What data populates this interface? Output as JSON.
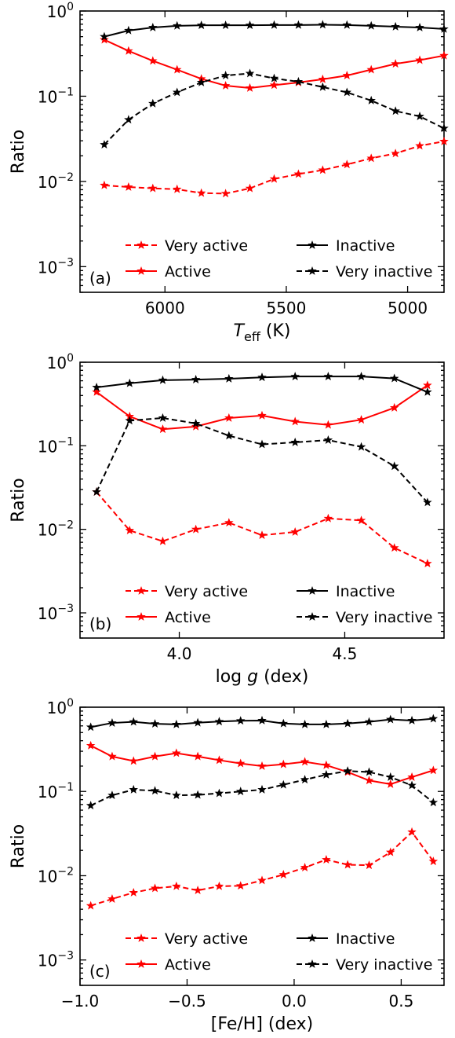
{
  "chart_data": [
    {
      "type": "line",
      "panel_label": "(a)",
      "xlabel_main": "T",
      "xlabel_sub": "eff",
      "xlabel_unit": " (K)",
      "ylabel": "Ratio",
      "xscale": "linear",
      "xreverse": true,
      "xlim": [
        6350,
        4850
      ],
      "yscale": "log",
      "ylim": [
        0.0005,
        1.0
      ],
      "xticks": [
        6000,
        5500,
        5000
      ],
      "xtick_labels": [
        "6000",
        "5500",
        "5000"
      ],
      "yticks": [
        0.001,
        0.01,
        0.1,
        1
      ],
      "ytick_labels": [
        "10",
        "10",
        "10",
        "10"
      ],
      "ytick_exps": [
        "−3",
        "−2",
        "−1",
        "0"
      ],
      "legend_position": "lower-right",
      "x": [
        6250,
        6150,
        6050,
        5950,
        5850,
        5750,
        5650,
        5550,
        5450,
        5350,
        5250,
        5150,
        5050,
        4950,
        4850
      ],
      "series": [
        {
          "name": "Very active",
          "color": "#ff0000",
          "dash": true,
          "values": [
            0.009,
            0.0086,
            0.0083,
            0.0081,
            0.0073,
            0.0072,
            0.0083,
            0.0107,
            0.0122,
            0.0136,
            0.0158,
            0.0187,
            0.0213,
            0.0262,
            0.0295
          ]
        },
        {
          "name": "Active",
          "color": "#ff0000",
          "dash": false,
          "values": [
            0.46,
            0.34,
            0.26,
            0.205,
            0.16,
            0.133,
            0.125,
            0.135,
            0.145,
            0.158,
            0.175,
            0.205,
            0.24,
            0.265,
            0.3
          ]
        },
        {
          "name": "Inactive",
          "color": "#000000",
          "dash": false,
          "values": [
            0.5,
            0.59,
            0.64,
            0.67,
            0.68,
            0.68,
            0.68,
            0.685,
            0.685,
            0.69,
            0.685,
            0.67,
            0.655,
            0.64,
            0.615
          ]
        },
        {
          "name": "Very inactive",
          "color": "#000000",
          "dash": true,
          "values": [
            0.027,
            0.053,
            0.082,
            0.111,
            0.145,
            0.175,
            0.185,
            0.162,
            0.148,
            0.128,
            0.111,
            0.089,
            0.067,
            0.058,
            0.042
          ]
        }
      ]
    },
    {
      "type": "line",
      "panel_label": "(b)",
      "xlabel_main": "log g",
      "xlabel_sub": "",
      "xlabel_unit": " (dex)",
      "ylabel": "Ratio",
      "xscale": "linear",
      "xreverse": false,
      "xlim": [
        3.7,
        4.8
      ],
      "yscale": "log",
      "ylim": [
        0.0005,
        1.0
      ],
      "xticks": [
        4.0,
        4.5
      ],
      "xtick_labels": [
        "4.0",
        "4.5"
      ],
      "yticks": [
        0.001,
        0.01,
        0.1,
        1
      ],
      "ytick_labels": [
        "10",
        "10",
        "10",
        "10"
      ],
      "ytick_exps": [
        "−3",
        "−2",
        "−1",
        "0"
      ],
      "legend_position": "lower-right",
      "x": [
        3.75,
        3.85,
        3.95,
        4.05,
        4.15,
        4.25,
        4.35,
        4.45,
        4.55,
        4.65,
        4.75
      ],
      "series": [
        {
          "name": "Very active",
          "color": "#ff0000",
          "dash": true,
          "values": [
            0.028,
            0.0097,
            0.0072,
            0.01,
            0.012,
            0.0085,
            0.0093,
            0.0135,
            0.0128,
            0.006,
            0.0039
          ]
        },
        {
          "name": "Active",
          "color": "#ff0000",
          "dash": false,
          "values": [
            0.44,
            0.225,
            0.158,
            0.17,
            0.215,
            0.23,
            0.195,
            0.178,
            0.205,
            0.285,
            0.53
          ]
        },
        {
          "name": "Inactive",
          "color": "#000000",
          "dash": false,
          "values": [
            0.5,
            0.56,
            0.61,
            0.62,
            0.635,
            0.66,
            0.675,
            0.675,
            0.675,
            0.64,
            0.44
          ]
        },
        {
          "name": "Very inactive",
          "color": "#000000",
          "dash": true,
          "values": [
            0.028,
            0.2,
            0.215,
            0.185,
            0.132,
            0.104,
            0.11,
            0.117,
            0.097,
            0.057,
            0.021
          ]
        }
      ]
    },
    {
      "type": "line",
      "panel_label": "(c)",
      "xlabel_main": "[Fe/H] (dex)",
      "xlabel_sub": "",
      "xlabel_unit": "",
      "ylabel": "Ratio",
      "xscale": "linear",
      "xreverse": false,
      "xlim": [
        -1.0,
        0.7
      ],
      "yscale": "log",
      "ylim": [
        0.0005,
        1.0
      ],
      "xticks": [
        -1.0,
        -0.5,
        0.0,
        0.5
      ],
      "xtick_labels": [
        "−1.0",
        "−0.5",
        "0.0",
        "0.5"
      ],
      "yticks": [
        0.001,
        0.01,
        0.1,
        1
      ],
      "ytick_labels": [
        "10",
        "10",
        "10",
        "10"
      ],
      "ytick_exps": [
        "−3",
        "−2",
        "−1",
        "0"
      ],
      "legend_position": "lower-right",
      "x": [
        -0.95,
        -0.85,
        -0.75,
        -0.65,
        -0.55,
        -0.45,
        -0.35,
        -0.25,
        -0.15,
        -0.05,
        0.05,
        0.15,
        0.25,
        0.35,
        0.45,
        0.55,
        0.65
      ],
      "series": [
        {
          "name": "Very active",
          "color": "#ff0000",
          "dash": true,
          "values": [
            0.0044,
            0.0053,
            0.0063,
            0.0071,
            0.0075,
            0.0067,
            0.0075,
            0.0076,
            0.0088,
            0.0103,
            0.0125,
            0.0155,
            0.0135,
            0.0133,
            0.019,
            0.033,
            0.0148
          ]
        },
        {
          "name": "Active",
          "color": "#ff0000",
          "dash": false,
          "values": [
            0.35,
            0.26,
            0.23,
            0.26,
            0.285,
            0.26,
            0.235,
            0.215,
            0.2,
            0.21,
            0.225,
            0.205,
            0.17,
            0.135,
            0.122,
            0.148,
            0.178
          ]
        },
        {
          "name": "Inactive",
          "color": "#000000",
          "dash": false,
          "values": [
            0.58,
            0.65,
            0.67,
            0.635,
            0.625,
            0.655,
            0.675,
            0.69,
            0.695,
            0.64,
            0.625,
            0.625,
            0.64,
            0.67,
            0.715,
            0.695,
            0.73
          ]
        },
        {
          "name": "Very inactive",
          "color": "#000000",
          "dash": true,
          "values": [
            0.068,
            0.09,
            0.105,
            0.102,
            0.09,
            0.091,
            0.095,
            0.1,
            0.105,
            0.12,
            0.138,
            0.158,
            0.175,
            0.17,
            0.148,
            0.118,
            0.074
          ]
        }
      ]
    }
  ]
}
